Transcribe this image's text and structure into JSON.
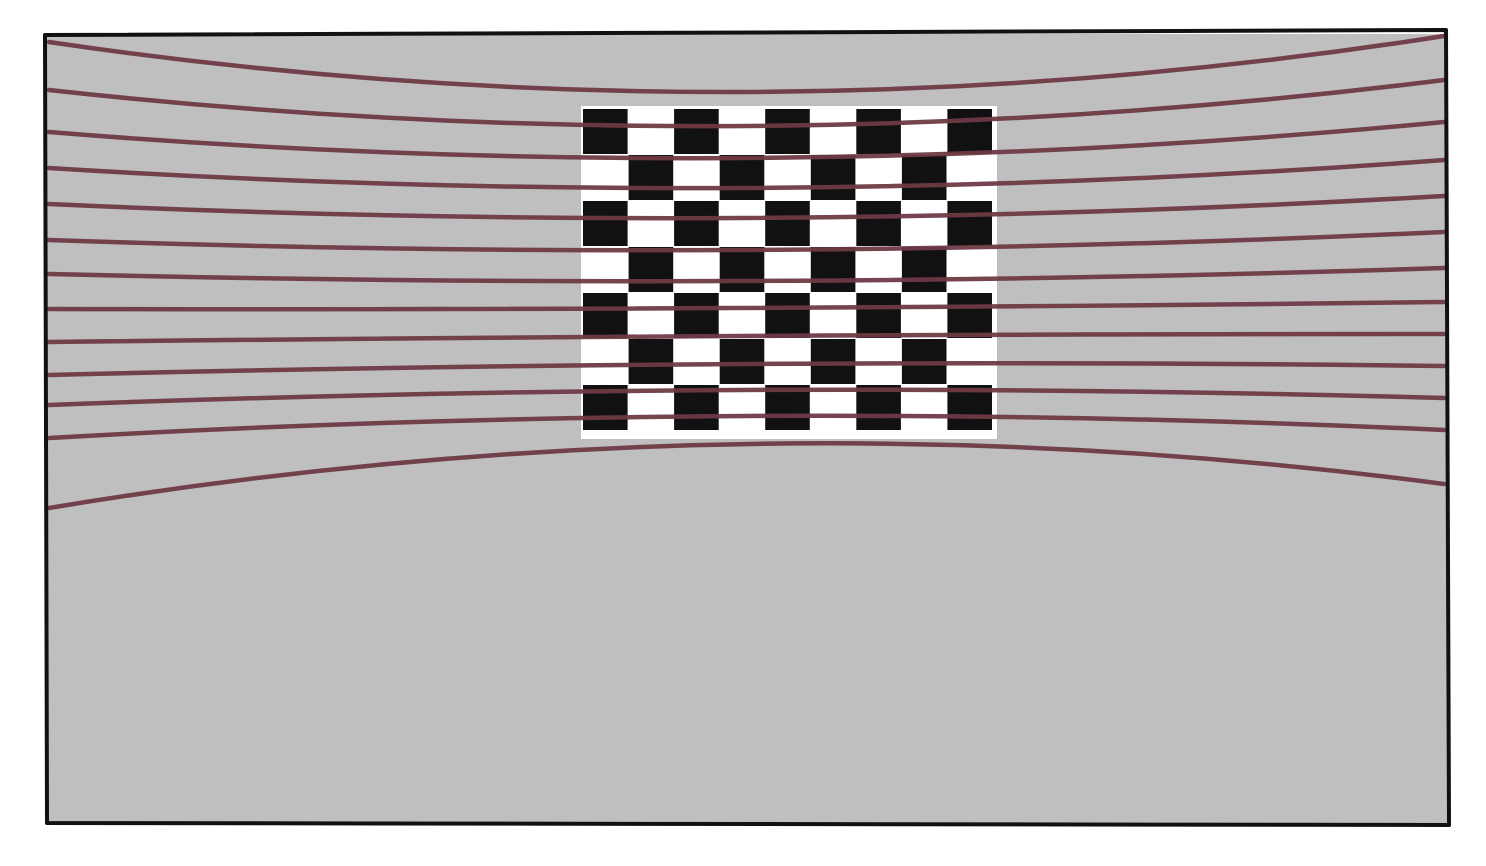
{
  "figure": {
    "description": "",
    "colors": {
      "page_background": "#ffffff",
      "panel_background": "#bfbfbf",
      "panel_border": "#111111",
      "distortion_lines": "#6e3a44",
      "checker_dark": "#111111",
      "checker_light": "#ffffff"
    },
    "checkerboard": {
      "columns": 9,
      "rows": 7,
      "top_left_dark": true
    },
    "distortion_lines": {
      "count": 13,
      "curvature": "barrel",
      "passes_over_checkerboard": true
    }
  }
}
